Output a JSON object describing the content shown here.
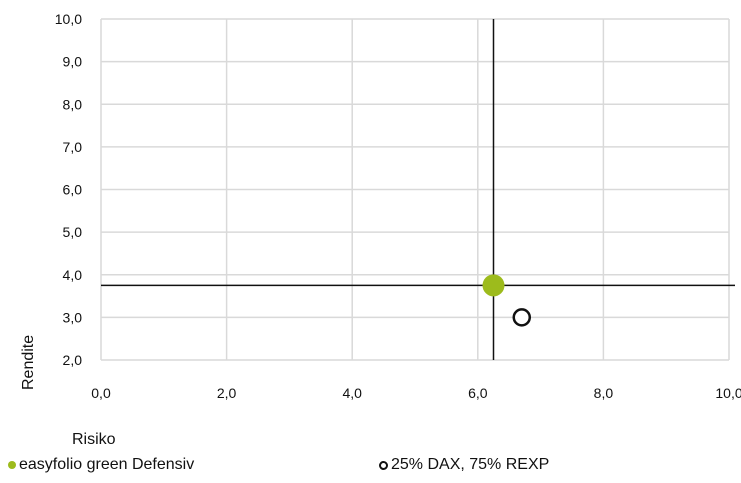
{
  "chart_data": {
    "type": "scatter",
    "xlabel": "Risiko",
    "ylabel": "Rendite",
    "xlim": [
      0,
      10
    ],
    "ylim": [
      2,
      10
    ],
    "xticks": [
      "0,0",
      "2,0",
      "4,0",
      "6,0",
      "8,0",
      "10,0"
    ],
    "yticks": [
      "2,0",
      "3,0",
      "4,0",
      "5,0",
      "6,0",
      "7,0",
      "8,0",
      "9,0",
      "10,0"
    ],
    "grid": true,
    "legend": "bottom",
    "series": [
      {
        "name": "easyfolio green Defensiv",
        "x": 6.25,
        "y": 3.75,
        "color": "#9dbb1c",
        "marker": "filled-circle"
      },
      {
        "name": "25% DAX, 75% REXP",
        "x": 6.7,
        "y": 3.0,
        "color": "#111111",
        "marker": "open-circle"
      }
    ],
    "crosshair": {
      "x": 6.25,
      "y": 3.75,
      "color": "#111111"
    }
  }
}
